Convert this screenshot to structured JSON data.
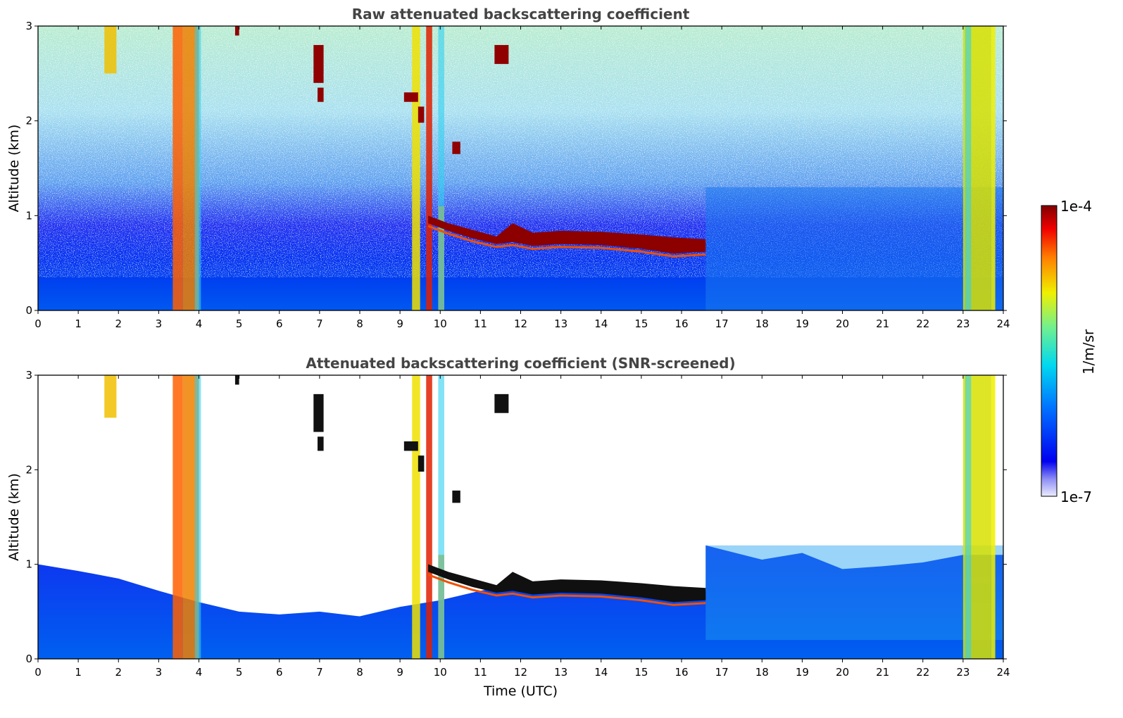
{
  "chart_data": [
    {
      "type": "heatmap",
      "title": "Raw attenuated backscattering coefficient",
      "xlabel": "",
      "ylabel": "Altitude (km)",
      "xlim": [
        0,
        24
      ],
      "ylim": [
        0,
        3
      ],
      "x_ticks": [
        "0",
        "1",
        "2",
        "3",
        "4",
        "5",
        "6",
        "7",
        "8",
        "9",
        "10",
        "11",
        "12",
        "13",
        "14",
        "15",
        "16",
        "17",
        "18",
        "19",
        "20",
        "21",
        "22",
        "23",
        "24"
      ],
      "y_ticks": [
        "0",
        "1",
        "2",
        "3"
      ],
      "colorbar": {
        "label": "1/m/sr",
        "min_label": "1e-7",
        "max_label": "1e-4",
        "scale": "log",
        "colormap": "jet"
      },
      "features": [
        {
          "name": "cloud layer",
          "x": [
            9.7,
            16.6
          ],
          "y": [
            0.62,
            1.0
          ]
        },
        {
          "name": "precipitation streak",
          "x": [
            3.5,
            4.0
          ],
          "y": [
            0,
            3
          ]
        },
        {
          "name": "precipitation streak",
          "x": [
            9.3,
            10.1
          ],
          "y": [
            0,
            3
          ]
        },
        {
          "name": "precipitation streak",
          "x": [
            23.0,
            23.8
          ],
          "y": [
            0,
            3
          ]
        },
        {
          "name": "boundary layer",
          "x": [
            0,
            24
          ],
          "y": [
            0,
            0.9
          ]
        }
      ]
    },
    {
      "type": "heatmap",
      "title": "Attenuated backscattering coefficient (SNR-screened)",
      "xlabel": "Time (UTC)",
      "ylabel": "Altitude (km)",
      "xlim": [
        0,
        24
      ],
      "ylim": [
        0,
        3
      ],
      "x_ticks": [
        "0",
        "1",
        "2",
        "3",
        "4",
        "5",
        "6",
        "7",
        "8",
        "9",
        "10",
        "11",
        "12",
        "13",
        "14",
        "15",
        "16",
        "17",
        "18",
        "19",
        "20",
        "21",
        "22",
        "23",
        "24"
      ],
      "y_ticks": [
        "0",
        "1",
        "2",
        "3"
      ],
      "colorbar": {
        "label": "1/m/sr",
        "min_label": "1e-7",
        "max_label": "1e-4",
        "scale": "log",
        "colormap": "jet"
      },
      "features": [
        {
          "name": "cloud layer",
          "x": [
            9.7,
            16.6
          ],
          "y": [
            0.62,
            1.0
          ]
        },
        {
          "name": "boundary layer top",
          "x": [
            0,
            24
          ],
          "y": [
            0.45,
            1.2
          ]
        }
      ]
    }
  ]
}
